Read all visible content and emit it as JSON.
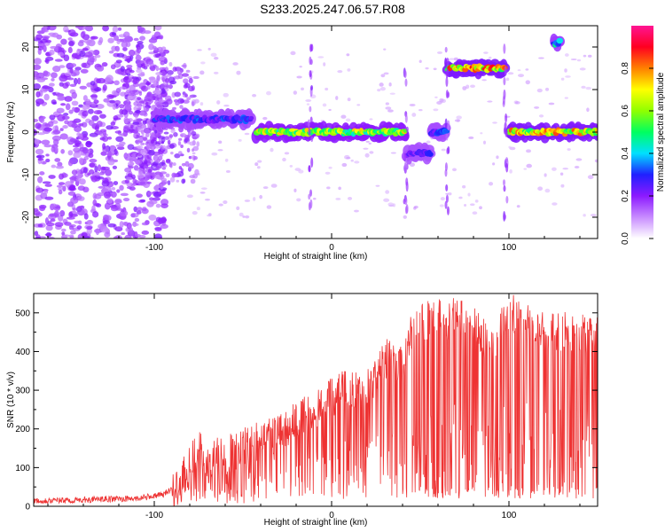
{
  "title": "S233.2025.247.06.57.R08",
  "chart_data": [
    {
      "type": "heatmap",
      "title": "S233.2025.247.06.57.R08",
      "xlabel": "Height of straight line (km)",
      "ylabel": "Frequency (Hz)",
      "xlim": [
        -168,
        150
      ],
      "ylim": [
        -25,
        25
      ],
      "xticks": [
        -100,
        0,
        100
      ],
      "yticks": [
        -20,
        -10,
        0,
        10,
        20
      ],
      "colorbar": {
        "label": "Normalized spectral amplitude",
        "range": [
          0,
          1
        ],
        "ticks": [
          0.0,
          0.2,
          0.4,
          0.6,
          0.8
        ],
        "colors": [
          "#ffffff",
          "#c88cff",
          "#8c1aff",
          "#2020ff",
          "#00e0ff",
          "#00ff60",
          "#90ff00",
          "#ffff00",
          "#ff8000",
          "#ff0020",
          "#ff1493"
        ]
      },
      "dominant_frequency_track": [
        {
          "x_range": [
            -100,
            -45
          ],
          "freq_hz": 3,
          "amplitude": 0.35
        },
        {
          "x_range": [
            -43,
            42
          ],
          "freq_hz": 0,
          "amplitude": 0.75
        },
        {
          "x_range": [
            42,
            56
          ],
          "freq_hz": -5,
          "amplitude": 0.3
        },
        {
          "x_range": [
            56,
            65
          ],
          "freq_hz": 0,
          "amplitude": 0.35
        },
        {
          "x_range": [
            65,
            98
          ],
          "freq_hz": 15,
          "amplitude": 0.9
        },
        {
          "x_range": [
            100,
            150
          ],
          "freq_hz": 0,
          "amplitude": 0.85
        },
        {
          "x_range": [
            125,
            129
          ],
          "freq_hz": 21,
          "amplitude": 0.5
        }
      ]
    },
    {
      "type": "line",
      "xlabel": "Height of straight line (km)",
      "ylabel": "SNR (10 * v/v)",
      "xlim": [
        -168,
        150
      ],
      "ylim": [
        0,
        550
      ],
      "xticks": [
        -100,
        0,
        100
      ],
      "yticks": [
        0,
        100,
        200,
        300,
        400,
        500
      ],
      "series": [
        {
          "name": "SNR",
          "color": "#ee3333",
          "x": [
            -168,
            -150,
            -130,
            -110,
            -95,
            -85,
            -80,
            -75,
            -70,
            -60,
            -50,
            -40,
            -30,
            -20,
            -10,
            0,
            10,
            20,
            25,
            30,
            35,
            40,
            45,
            50,
            55,
            60,
            65,
            70,
            80,
            85,
            90,
            95,
            100,
            105,
            110,
            120,
            130,
            140,
            150
          ],
          "values": [
            15,
            15,
            18,
            20,
            30,
            60,
            110,
            150,
            120,
            130,
            150,
            170,
            190,
            220,
            250,
            280,
            310,
            300,
            330,
            380,
            390,
            360,
            450,
            470,
            480,
            490,
            470,
            500,
            480,
            440,
            410,
            460,
            510,
            480,
            470,
            450,
            450,
            450,
            440
          ]
        }
      ]
    }
  ]
}
